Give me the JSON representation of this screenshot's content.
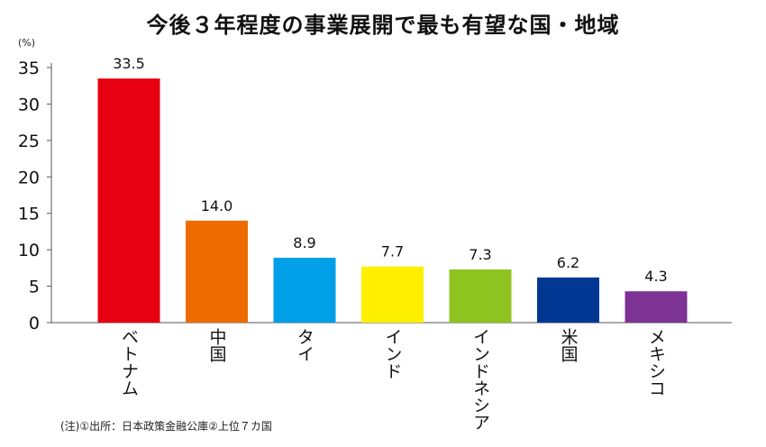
{
  "chart_data": {
    "type": "bar",
    "title": "今後３年程度の事業展開で最も有望な国・地域",
    "ylabel": "(%)",
    "ylim": [
      0,
      35
    ],
    "yticks": [
      0,
      5,
      10,
      15,
      20,
      25,
      30,
      35
    ],
    "categories": [
      "ベトナム",
      "中国",
      "タイ",
      "インド",
      "インドネシア",
      "米国",
      "メキシコ"
    ],
    "values": [
      33.5,
      14.0,
      8.9,
      7.7,
      7.3,
      6.2,
      4.3
    ],
    "value_labels": [
      "33.5",
      "14.0",
      "8.9",
      "7.7",
      "7.3",
      "6.2",
      "4.3"
    ],
    "colors": [
      "#e60012",
      "#ec6c00",
      "#00a0e9",
      "#fff000",
      "#8fc31f",
      "#003894",
      "#7d3393"
    ],
    "grid": false,
    "legend": "none",
    "note": "(注)①出所：日本政策金融公庫②上位７カ国"
  }
}
